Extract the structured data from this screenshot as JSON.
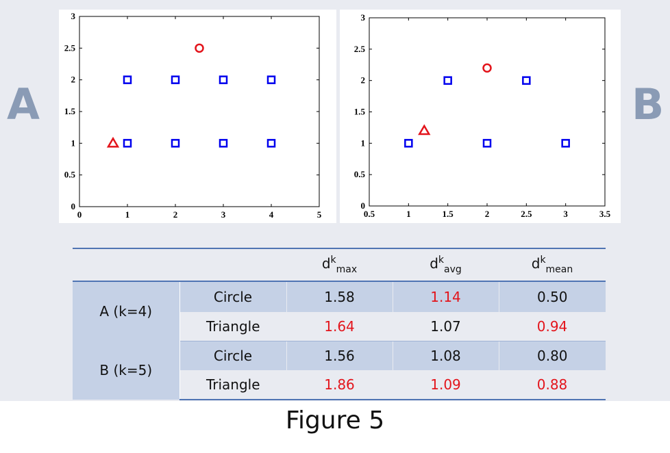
{
  "panel_labels": {
    "left": "A",
    "right": "B"
  },
  "colors": {
    "square": "#0000ee",
    "highlight": "#e3141b",
    "slide_bg": "#e9ebf1",
    "table_band": "#c5d1e6",
    "table_rule": "#4f74b3",
    "panel_letter": "#8a9bb5"
  },
  "chart_data": [
    {
      "type": "scatter",
      "panel": "A",
      "xlim": [
        0,
        5
      ],
      "ylim": [
        0,
        3
      ],
      "xticks": [
        "0",
        "1",
        "2",
        "3",
        "4",
        "5"
      ],
      "yticks": [
        "0",
        "0.5",
        "1",
        "1.5",
        "2",
        "2.5",
        "3"
      ],
      "xtick_values": [
        0,
        1,
        2,
        3,
        4,
        5
      ],
      "ytick_values": [
        0,
        0.5,
        1,
        1.5,
        2,
        2.5,
        3
      ],
      "grid": false,
      "series": [
        {
          "marker": "square",
          "color": "#0000ee",
          "points": [
            [
              1,
              1
            ],
            [
              2,
              1
            ],
            [
              3,
              1
            ],
            [
              4,
              1
            ],
            [
              1,
              2
            ],
            [
              2,
              2
            ],
            [
              3,
              2
            ],
            [
              4,
              2
            ]
          ]
        },
        {
          "marker": "circle",
          "color": "#e3141b",
          "points": [
            [
              2.5,
              2.5
            ]
          ]
        },
        {
          "marker": "triangle",
          "color": "#e3141b",
          "points": [
            [
              0.7,
              1
            ]
          ]
        }
      ]
    },
    {
      "type": "scatter",
      "panel": "B",
      "xlim": [
        0.5,
        3.5
      ],
      "ylim": [
        0,
        3
      ],
      "xticks": [
        "0.5",
        "1",
        "1.5",
        "2",
        "2.5",
        "3",
        "3.5"
      ],
      "yticks": [
        "0",
        "0.5",
        "1",
        "1.5",
        "2",
        "2.5",
        "3"
      ],
      "xtick_values": [
        0.5,
        1,
        1.5,
        2,
        2.5,
        3,
        3.5
      ],
      "ytick_values": [
        0,
        0.5,
        1,
        1.5,
        2,
        2.5,
        3
      ],
      "grid": false,
      "series": [
        {
          "marker": "square",
          "color": "#0000ee",
          "points": [
            [
              1,
              1
            ],
            [
              2,
              1
            ],
            [
              3,
              1
            ],
            [
              1.5,
              2
            ],
            [
              2.5,
              2
            ]
          ]
        },
        {
          "marker": "circle",
          "color": "#e3141b",
          "points": [
            [
              2,
              2.2
            ]
          ]
        },
        {
          "marker": "triangle",
          "color": "#e3141b",
          "points": [
            [
              1.2,
              1.2
            ]
          ]
        }
      ]
    }
  ],
  "table": {
    "headers": [
      {
        "base": "d",
        "sup": "k",
        "sub": "max"
      },
      {
        "base": "d",
        "sup": "k",
        "sub": "avg"
      },
      {
        "base": "d",
        "sup": "k",
        "sub": "mean"
      }
    ],
    "groups": [
      {
        "label": "A (k=4)",
        "rows": [
          {
            "label": "Circle",
            "values": [
              "1.58",
              "1.14",
              "0.50"
            ],
            "highlight": [
              false,
              true,
              false
            ]
          },
          {
            "label": "Triangle",
            "values": [
              "1.64",
              "1.07",
              "0.94"
            ],
            "highlight": [
              true,
              false,
              true
            ]
          }
        ]
      },
      {
        "label": "B (k=5)",
        "rows": [
          {
            "label": "Circle",
            "values": [
              "1.56",
              "1.08",
              "0.80"
            ],
            "highlight": [
              false,
              false,
              false
            ]
          },
          {
            "label": "Triangle",
            "values": [
              "1.86",
              "1.09",
              "0.88"
            ],
            "highlight": [
              true,
              true,
              true
            ]
          }
        ]
      }
    ]
  },
  "caption": "Figure 5"
}
